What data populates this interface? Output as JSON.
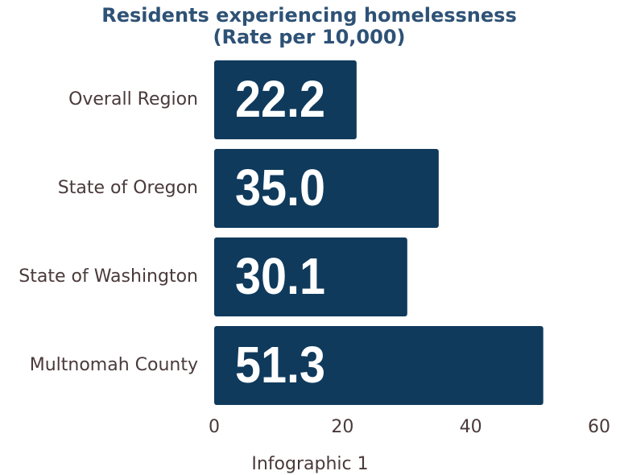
{
  "chart_data": {
    "type": "bar",
    "orientation": "horizontal",
    "title": "Residents experiencing homelessness",
    "subtitle": "(Rate per 10,000)",
    "x_label": "Infographic 1",
    "categories": [
      "Overall Region",
      "State of Oregon",
      "State of Washington",
      "Multnomah County"
    ],
    "values": [
      22.2,
      35,
      30.1,
      51.3
    ],
    "value_labels": [
      "22.2",
      "35.0",
      "30.1",
      "51.3"
    ],
    "color": "#0f3a5c",
    "xlim": [
      0,
      60
    ],
    "xticks": [
      0,
      20,
      40,
      60
    ],
    "grid": false
  }
}
